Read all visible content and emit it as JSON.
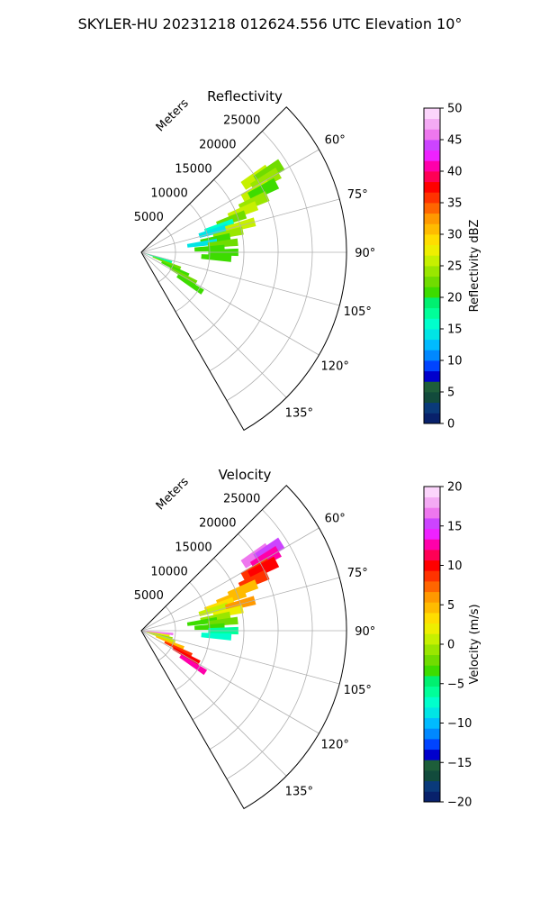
{
  "suptitle": "SKYLER-HU  20231218  012624.556 UTC Elevation 10°",
  "chart_data": [
    {
      "type": "heatmap",
      "projection": "polar-sector",
      "title": "Reflectivity",
      "range_label": "Meters",
      "range_ticks": [
        "5000",
        "10000",
        "15000",
        "20000",
        "25000"
      ],
      "range_max": 30000,
      "azimuth_range": [
        45,
        150
      ],
      "azimuth_ticks": [
        "60°",
        "75°",
        "90°",
        "105°",
        "120°",
        "135°"
      ],
      "grid": true,
      "colorbar": {
        "label": "Reflectivity dBZ",
        "min": 0,
        "max": 50,
        "ticks": [
          "0",
          "5",
          "10",
          "15",
          "20",
          "25",
          "30",
          "35",
          "40",
          "45",
          "50"
        ],
        "colors": [
          "#08216b",
          "#0a3a7a",
          "#124b3c",
          "#1e5e3a",
          "#0000cc",
          "#0044ff",
          "#0088ff",
          "#00bbff",
          "#00e5e5",
          "#00ffcc",
          "#00ff99",
          "#00f070",
          "#3ddc00",
          "#70dc00",
          "#9ae600",
          "#c6f000",
          "#eeee00",
          "#ffdd00",
          "#ffbb00",
          "#ff9900",
          "#ff6600",
          "#ff3300",
          "#ff0000",
          "#ff0055",
          "#ff00aa",
          "#ee22ff",
          "#cc44ff",
          "#ee77ee",
          "#f4aaf4",
          "#fcd5fc"
        ]
      },
      "cells": [
        {
          "az": 57,
          "r": 20000,
          "dbz": 26
        },
        {
          "az": 58,
          "r": 22000,
          "dbz": 22
        },
        {
          "az": 60,
          "r": 21000,
          "dbz": 24
        },
        {
          "az": 62,
          "r": 19000,
          "dbz": 25
        },
        {
          "az": 63,
          "r": 20000,
          "dbz": 20
        },
        {
          "az": 66,
          "r": 18000,
          "dbz": 24
        },
        {
          "az": 68,
          "r": 16000,
          "dbz": 26
        },
        {
          "az": 70,
          "r": 14000,
          "dbz": 23
        },
        {
          "az": 72,
          "r": 12000,
          "dbz": 16
        },
        {
          "az": 74,
          "r": 11000,
          "dbz": 14
        },
        {
          "az": 75,
          "r": 15000,
          "dbz": 25
        },
        {
          "az": 78,
          "r": 13000,
          "dbz": 24
        },
        {
          "az": 80,
          "r": 11000,
          "dbz": 20
        },
        {
          "az": 82,
          "r": 9000,
          "dbz": 14
        },
        {
          "az": 84,
          "r": 12000,
          "dbz": 22
        },
        {
          "az": 87,
          "r": 10000,
          "dbz": 21
        },
        {
          "az": 90,
          "r": 12000,
          "dbz": 20
        },
        {
          "az": 94,
          "r": 11000,
          "dbz": 21
        },
        {
          "az": 108,
          "r": 2500,
          "dbz": 18
        },
        {
          "az": 112,
          "r": 4000,
          "dbz": 22
        },
        {
          "az": 116,
          "r": 5500,
          "dbz": 20
        },
        {
          "az": 119,
          "r": 7000,
          "dbz": 23
        },
        {
          "az": 123,
          "r": 8500,
          "dbz": 20
        }
      ]
    },
    {
      "type": "heatmap",
      "projection": "polar-sector",
      "title": "Velocity",
      "range_label": "Meters",
      "range_ticks": [
        "5000",
        "10000",
        "15000",
        "20000",
        "25000"
      ],
      "range_max": 30000,
      "azimuth_range": [
        45,
        150
      ],
      "azimuth_ticks": [
        "60°",
        "75°",
        "90°",
        "105°",
        "120°",
        "135°"
      ],
      "grid": true,
      "colorbar": {
        "label": "Velocity (m/s)",
        "min": -20,
        "max": 20,
        "ticks": [
          "−20",
          "−15",
          "−10",
          "−5",
          "0",
          "5",
          "10",
          "15",
          "20"
        ],
        "colors": [
          "#08216b",
          "#0a3a7a",
          "#124b3c",
          "#1e5e3a",
          "#0000cc",
          "#0044ff",
          "#0088ff",
          "#00bbff",
          "#00e5e5",
          "#00ffcc",
          "#00ff99",
          "#00f070",
          "#3ddc00",
          "#70dc00",
          "#9ae600",
          "#c6f000",
          "#eeee00",
          "#ffdd00",
          "#ffbb00",
          "#ff9900",
          "#ff6600",
          "#ff3300",
          "#ff0000",
          "#ff0055",
          "#ff00aa",
          "#ee22ff",
          "#cc44ff",
          "#ee77ee",
          "#f4aaf4",
          "#fcd5fc"
        ]
      },
      "cells": [
        {
          "az": 57,
          "r": 20000,
          "v": 17
        },
        {
          "az": 58,
          "r": 22000,
          "v": 15
        },
        {
          "az": 60,
          "r": 21000,
          "v": 12
        },
        {
          "az": 62,
          "r": 19000,
          "v": 9
        },
        {
          "az": 63,
          "r": 20000,
          "v": 10
        },
        {
          "az": 66,
          "r": 18000,
          "v": 8
        },
        {
          "az": 68,
          "r": 16000,
          "v": 5
        },
        {
          "az": 70,
          "r": 14000,
          "v": 4
        },
        {
          "az": 72,
          "r": 12000,
          "v": 3
        },
        {
          "az": 74,
          "r": 11000,
          "v": 1
        },
        {
          "az": 75,
          "r": 15000,
          "v": 6
        },
        {
          "az": 78,
          "r": 13000,
          "v": 2
        },
        {
          "az": 80,
          "r": 11000,
          "v": -1
        },
        {
          "az": 82,
          "r": 9000,
          "v": -3
        },
        {
          "az": 84,
          "r": 12000,
          "v": -2
        },
        {
          "az": 87,
          "r": 10000,
          "v": -4
        },
        {
          "az": 90,
          "r": 12000,
          "v": -6
        },
        {
          "az": 94,
          "r": 11000,
          "v": -7
        },
        {
          "az": 100,
          "r": 2000,
          "v": 2
        },
        {
          "az": 104,
          "r": 2500,
          "v": -1
        },
        {
          "az": 108,
          "r": 3000,
          "v": 0
        },
        {
          "az": 112,
          "r": 4500,
          "v": 5
        },
        {
          "az": 116,
          "r": 6000,
          "v": 8
        },
        {
          "az": 119,
          "r": 7500,
          "v": 10
        },
        {
          "az": 123,
          "r": 9000,
          "v": 13
        },
        {
          "az": 96,
          "r": 2500,
          "v": 16
        }
      ]
    }
  ]
}
